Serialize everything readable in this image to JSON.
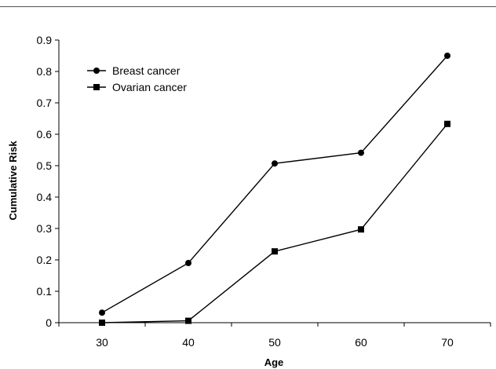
{
  "chart_data": {
    "type": "line",
    "x": [
      30,
      40,
      50,
      60,
      70
    ],
    "series": [
      {
        "name": "Breast cancer",
        "marker": "circle",
        "values": [
          0.032,
          0.19,
          0.507,
          0.541,
          0.85
        ]
      },
      {
        "name": "Ovarian cancer",
        "marker": "square",
        "values": [
          0.0,
          0.006,
          0.227,
          0.297,
          0.633
        ]
      }
    ],
    "xlabel": "Age",
    "ylabel": "Cumulative Risk",
    "xlim": [
      25,
      75
    ],
    "ylim": [
      0,
      0.9
    ],
    "yticks": [
      "0",
      "0.1",
      "0.2",
      "0.3",
      "0.4",
      "0.5",
      "0.6",
      "0.7",
      "0.8",
      "0.9"
    ],
    "xticks": [
      "30",
      "40",
      "50",
      "60",
      "70"
    ],
    "grid": false,
    "legend_position": "top-left",
    "line_color": "#000000"
  }
}
